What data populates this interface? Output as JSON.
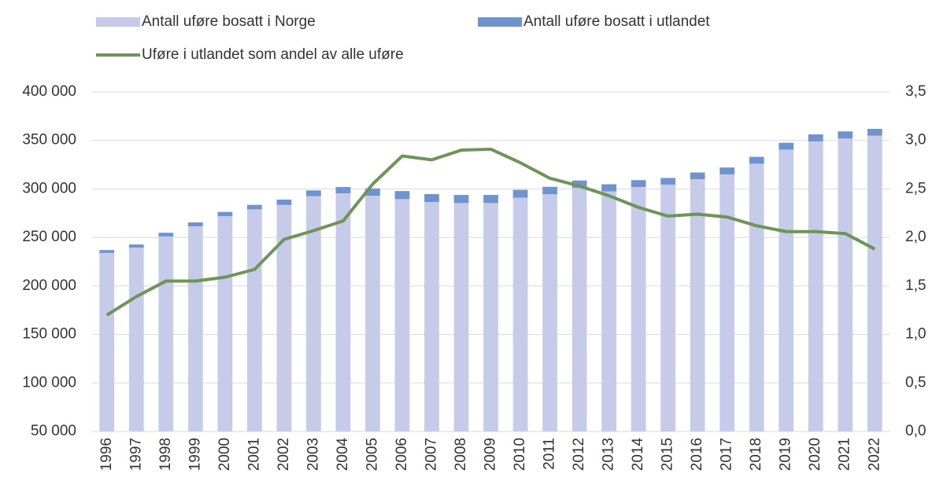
{
  "chart_data": {
    "type": "bar",
    "stacked": true,
    "grid": true,
    "categories": [
      "1996",
      "1997",
      "1998",
      "1999",
      "2000",
      "2001",
      "2002",
      "2003",
      "2004",
      "2005",
      "2006",
      "2007",
      "2008",
      "2009",
      "2010",
      "2011",
      "2012",
      "2013",
      "2014",
      "2015",
      "2016",
      "2017",
      "2018",
      "2019",
      "2020",
      "2021",
      "2022"
    ],
    "series": [
      {
        "name": "Antall uføre bosatt i Norge",
        "color": "#c5cbe8",
        "values": [
          234000,
          239500,
          251000,
          261500,
          272000,
          279000,
          283500,
          292500,
          295500,
          293000,
          289500,
          286500,
          285500,
          285500,
          291000,
          294500,
          301000,
          297500,
          302000,
          304500,
          310000,
          315000,
          326000,
          340500,
          349000,
          352000,
          355000
        ]
      },
      {
        "name": "Antall uføre bosatt i utlandet",
        "color": "#6f93cc",
        "values": [
          3000,
          3200,
          3800,
          4000,
          4300,
          4600,
          5500,
          6000,
          6500,
          7500,
          8300,
          8200,
          8300,
          8300,
          8100,
          7700,
          7700,
          7300,
          7100,
          6800,
          7000,
          7100,
          7100,
          7100,
          7300,
          7300,
          6900
        ]
      },
      {
        "name": "Uføre i utlandet som andel av alle uføre",
        "color": "#6e9458",
        "axis": "y2",
        "values": [
          1.2,
          1.39,
          1.55,
          1.55,
          1.59,
          1.67,
          1.98,
          2.07,
          2.17,
          2.55,
          2.84,
          2.8,
          2.9,
          2.91,
          2.77,
          2.61,
          2.53,
          2.43,
          2.31,
          2.22,
          2.24,
          2.21,
          2.12,
          2.06,
          2.06,
          2.04,
          1.88
        ]
      }
    ],
    "ylim": [
      50000,
      400000
    ],
    "yticks": [
      {
        "value": 50000,
        "label": "50 000"
      },
      {
        "value": 100000,
        "label": "100 000"
      },
      {
        "value": 150000,
        "label": "150 000"
      },
      {
        "value": 200000,
        "label": "200 000"
      },
      {
        "value": 250000,
        "label": "250 000"
      },
      {
        "value": 300000,
        "label": "300 000"
      },
      {
        "value": 350000,
        "label": "350 000"
      },
      {
        "value": 400000,
        "label": "400 000"
      }
    ],
    "y2lim": [
      0,
      3.5
    ],
    "y2ticks": [
      {
        "value": 0,
        "label": "0,0"
      },
      {
        "value": 0.5,
        "label": "0,5"
      },
      {
        "value": 1,
        "label": "1,0"
      },
      {
        "value": 1.5,
        "label": "1,5"
      },
      {
        "value": 2,
        "label": "2,0"
      },
      {
        "value": 2.5,
        "label": "2,5"
      },
      {
        "value": 3,
        "label": "3,0"
      },
      {
        "value": 3.5,
        "label": "3,5"
      }
    ]
  }
}
